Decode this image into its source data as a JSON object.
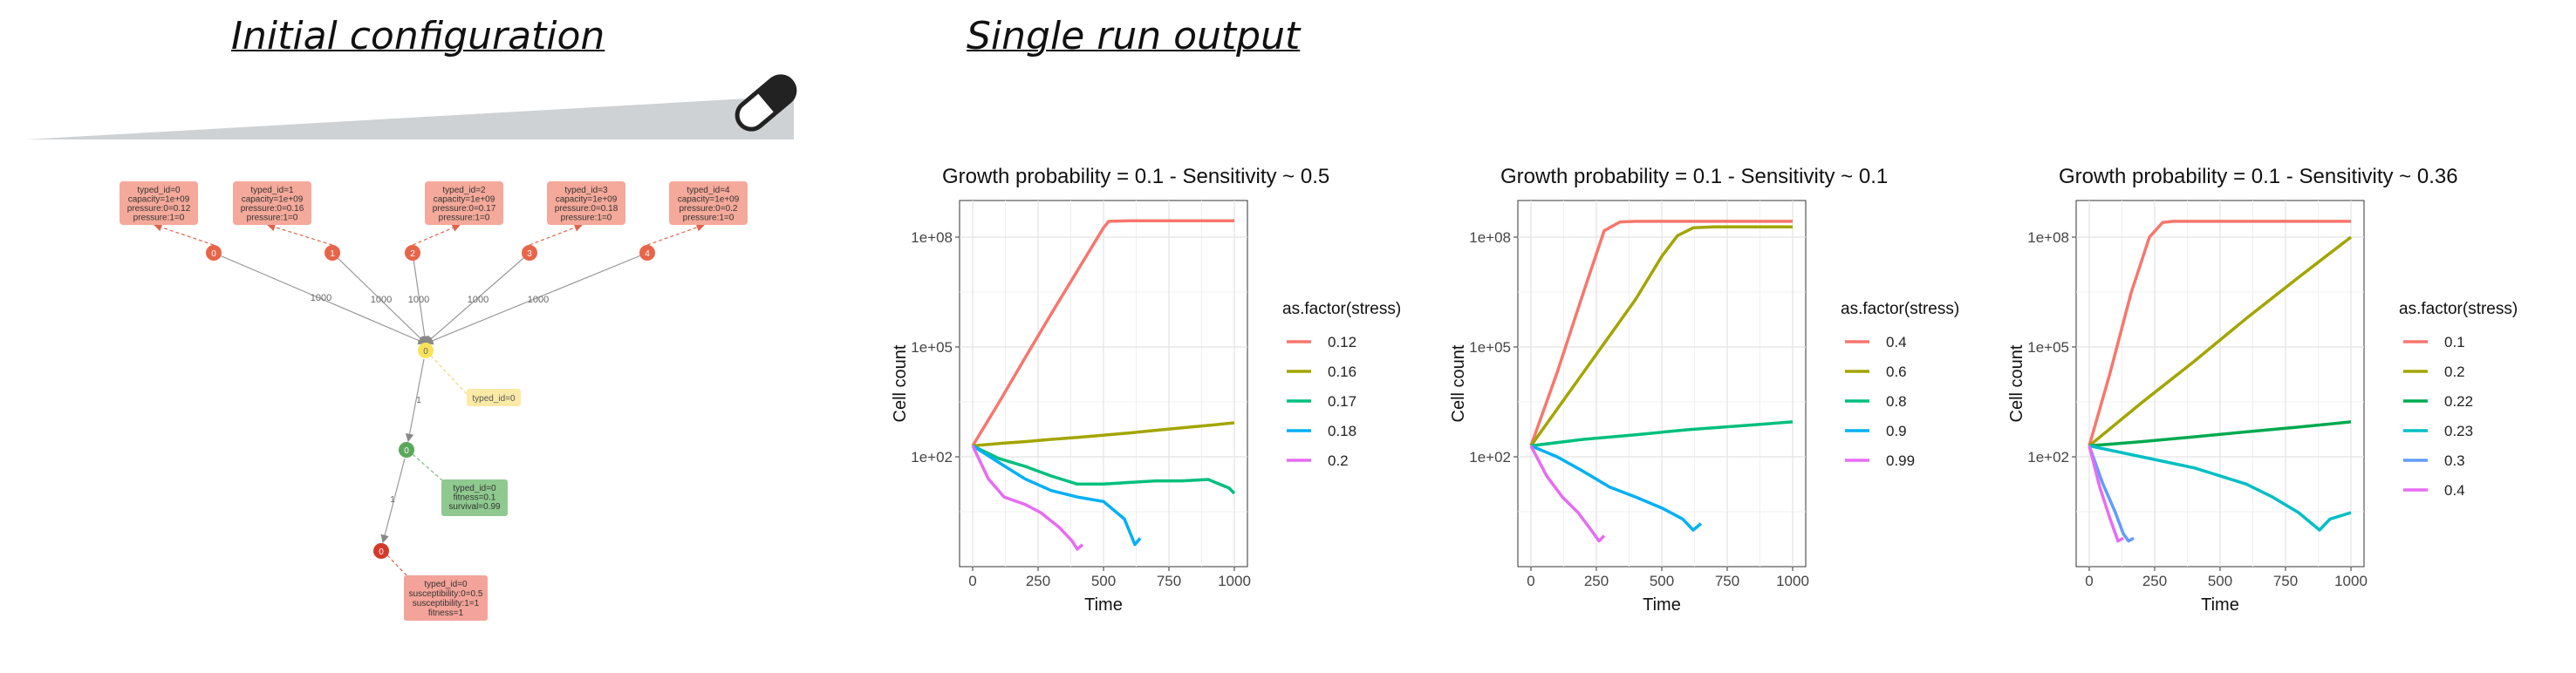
{
  "headings": {
    "initial": "Initial configuration",
    "single_run": "Single run output"
  },
  "diagram": {
    "resource_boxes": [
      {
        "id": "0",
        "lines": [
          "typed_id=0",
          "capacity=1e+09",
          "pressure:0=0.12",
          "pressure:1=0"
        ]
      },
      {
        "id": "1",
        "lines": [
          "typed_id=1",
          "capacity=1e+09",
          "pressure:0=0.16",
          "pressure:1=0"
        ]
      },
      {
        "id": "2",
        "lines": [
          "typed_id=2",
          "capacity=1e+09",
          "pressure:0=0.17",
          "pressure:1=0"
        ]
      },
      {
        "id": "3",
        "lines": [
          "typed_id=3",
          "capacity=1e+09",
          "pressure:0=0.18",
          "pressure:1=0"
        ]
      },
      {
        "id": "4",
        "lines": [
          "typed_id=4",
          "capacity=1e+09",
          "pressure:0=0.2",
          "pressure:1=0"
        ]
      }
    ],
    "edge_label": "1000",
    "center_node": "0",
    "center_box": [
      "typed_id=0"
    ],
    "green_node": "0",
    "green_box": [
      "typed_id=0",
      "fitness=0.1",
      "survival=0.99"
    ],
    "red_node": "0",
    "red_box": [
      "typed_id=0",
      "susceptibility:0=0.5",
      "susceptibility:1=1",
      "fitness=1"
    ],
    "small_edge_label": "1"
  },
  "chart_data": [
    {
      "type": "line",
      "title": "Growth probability = 0.1 - Sensitivity ~ 0.5",
      "xlabel": "Time",
      "ylabel": "Cell count",
      "y_scale": "log10",
      "x_ticks": [
        0,
        250,
        500,
        750,
        1000
      ],
      "y_ticks": [
        "1e+02",
        "1e+05",
        "1e+08"
      ],
      "legend_title": "as.factor(stress)",
      "legend_position": "right",
      "grid": true,
      "series": [
        {
          "name": "0.12",
          "color": "#F8766D",
          "x": [
            0,
            100,
            200,
            300,
            400,
            500,
            520,
            600,
            700,
            800,
            900,
            1000
          ],
          "y": [
            200,
            3000,
            50000,
            800000,
            12000000,
            180000000,
            270000000,
            280000000,
            280000000,
            280000000,
            280000000,
            280000000
          ]
        },
        {
          "name": "0.16",
          "color": "#A3A500",
          "x": [
            0,
            100,
            200,
            300,
            400,
            500,
            600,
            700,
            800,
            900,
            1000
          ],
          "y": [
            200,
            230,
            260,
            300,
            340,
            390,
            450,
            530,
            620,
            720,
            850
          ]
        },
        {
          "name": "0.17",
          "color": "#00BF7D",
          "x": [
            0,
            100,
            200,
            300,
            400,
            500,
            600,
            700,
            800,
            900,
            980,
            1000
          ],
          "y": [
            200,
            90,
            55,
            30,
            18,
            18,
            20,
            22,
            22,
            24,
            14,
            10
          ]
        },
        {
          "name": "0.18",
          "color": "#00B0F6",
          "x": [
            0,
            100,
            200,
            300,
            400,
            500,
            580,
            620,
            640
          ],
          "y": [
            200,
            70,
            25,
            12,
            8,
            6,
            2,
            0.4,
            0.6
          ]
        },
        {
          "name": "0.2",
          "color": "#E76BF3",
          "x": [
            0,
            60,
            120,
            200,
            260,
            330,
            380,
            400,
            420
          ],
          "y": [
            200,
            25,
            8,
            5,
            3,
            1.2,
            0.5,
            0.3,
            0.4
          ]
        }
      ]
    },
    {
      "type": "line",
      "title": "Growth probability = 0.1 - Sensitivity ~ 0.1",
      "xlabel": "Time",
      "ylabel": "Cell count",
      "y_scale": "log10",
      "x_ticks": [
        0,
        250,
        500,
        750,
        1000
      ],
      "y_ticks": [
        "1e+02",
        "1e+05",
        "1e+08"
      ],
      "legend_title": "as.factor(stress)",
      "legend_position": "right",
      "grid": true,
      "series": [
        {
          "name": "0.4",
          "color": "#F8766D",
          "x": [
            0,
            100,
            200,
            280,
            340,
            400,
            600,
            800,
            1000
          ],
          "y": [
            200,
            20000,
            3000000,
            150000000,
            260000000,
            270000000,
            270000000,
            270000000,
            270000000
          ]
        },
        {
          "name": "0.6",
          "color": "#A3A500",
          "x": [
            0,
            100,
            200,
            300,
            400,
            500,
            560,
            620,
            700,
            800,
            1000
          ],
          "y": [
            200,
            2000,
            20000,
            200000,
            2000000,
            30000000,
            110000000,
            180000000,
            190000000,
            190000000,
            190000000
          ]
        },
        {
          "name": "0.8",
          "color": "#00BF7D",
          "x": [
            0,
            200,
            400,
            600,
            800,
            1000
          ],
          "y": [
            200,
            300,
            400,
            550,
            700,
            900
          ]
        },
        {
          "name": "0.9",
          "color": "#00B0F6",
          "x": [
            0,
            100,
            200,
            300,
            400,
            500,
            580,
            620,
            650
          ],
          "y": [
            200,
            100,
            40,
            15,
            8,
            4,
            2,
            1,
            1.5
          ]
        },
        {
          "name": "0.99",
          "color": "#E76BF3",
          "x": [
            0,
            60,
            120,
            180,
            230,
            260,
            280
          ],
          "y": [
            200,
            30,
            8,
            3,
            1,
            0.5,
            0.7
          ]
        }
      ]
    },
    {
      "type": "line",
      "title": "Growth probability = 0.1 - Sensitivity ~ 0.36",
      "xlabel": "Time",
      "ylabel": "Cell count",
      "y_scale": "log10",
      "x_ticks": [
        0,
        250,
        500,
        750,
        1000
      ],
      "y_ticks": [
        "1e+02",
        "1e+05",
        "1e+08"
      ],
      "legend_title": "as.factor(stress)",
      "legend_position": "right",
      "grid": true,
      "series": [
        {
          "name": "0.1",
          "color": "#F8766D",
          "x": [
            0,
            80,
            160,
            230,
            280,
            320,
            400,
            600,
            800,
            1000
          ],
          "y": [
            200,
            20000,
            3000000,
            100000000,
            250000000,
            270000000,
            270000000,
            270000000,
            270000000,
            270000000
          ]
        },
        {
          "name": "0.2",
          "color": "#A3A500",
          "x": [
            0,
            200,
            400,
            600,
            800,
            1000
          ],
          "y": [
            200,
            3000,
            40000,
            600000,
            8000000,
            100000000
          ]
        },
        {
          "name": "0.22",
          "color": "#00A94F",
          "x": [
            0,
            200,
            400,
            600,
            800,
            1000
          ],
          "y": [
            200,
            260,
            350,
            480,
            650,
            900
          ]
        },
        {
          "name": "0.23",
          "color": "#00BFC4",
          "x": [
            0,
            200,
            400,
            600,
            700,
            800,
            880,
            920,
            1000
          ],
          "y": [
            200,
            100,
            50,
            18,
            8,
            3,
            1,
            2,
            3
          ]
        },
        {
          "name": "0.3",
          "color": "#619CFF",
          "x": [
            0,
            50,
            100,
            130,
            150,
            170
          ],
          "y": [
            200,
            20,
            3,
            0.8,
            0.5,
            0.6
          ]
        },
        {
          "name": "0.4",
          "color": "#E76BF3",
          "x": [
            0,
            40,
            80,
            110,
            130
          ],
          "y": [
            200,
            15,
            2,
            0.5,
            0.6
          ]
        }
      ]
    }
  ]
}
